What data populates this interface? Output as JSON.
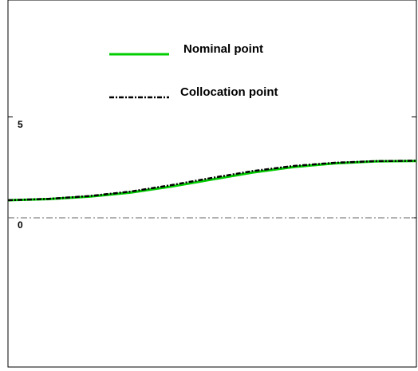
{
  "chart_data": {
    "type": "line",
    "x": [
      0,
      1,
      2,
      3,
      4,
      5,
      6,
      7,
      8,
      9,
      10
    ],
    "xlim": [
      0,
      10
    ],
    "ylim": [
      -7.4,
      10.8
    ],
    "yticks": [
      0,
      5
    ],
    "reference_line": 0,
    "legend": "top",
    "series": [
      {
        "name": "Nominal point",
        "color": "#00cc00",
        "style": "solid",
        "values": [
          0.87,
          0.93,
          1.05,
          1.25,
          1.55,
          1.9,
          2.25,
          2.52,
          2.7,
          2.8,
          2.82
        ]
      },
      {
        "name": "Collocation point",
        "color": "#000000",
        "style": "dashdot",
        "values": [
          0.87,
          0.94,
          1.08,
          1.3,
          1.62,
          1.98,
          2.32,
          2.57,
          2.73,
          2.81,
          2.83
        ]
      }
    ]
  }
}
